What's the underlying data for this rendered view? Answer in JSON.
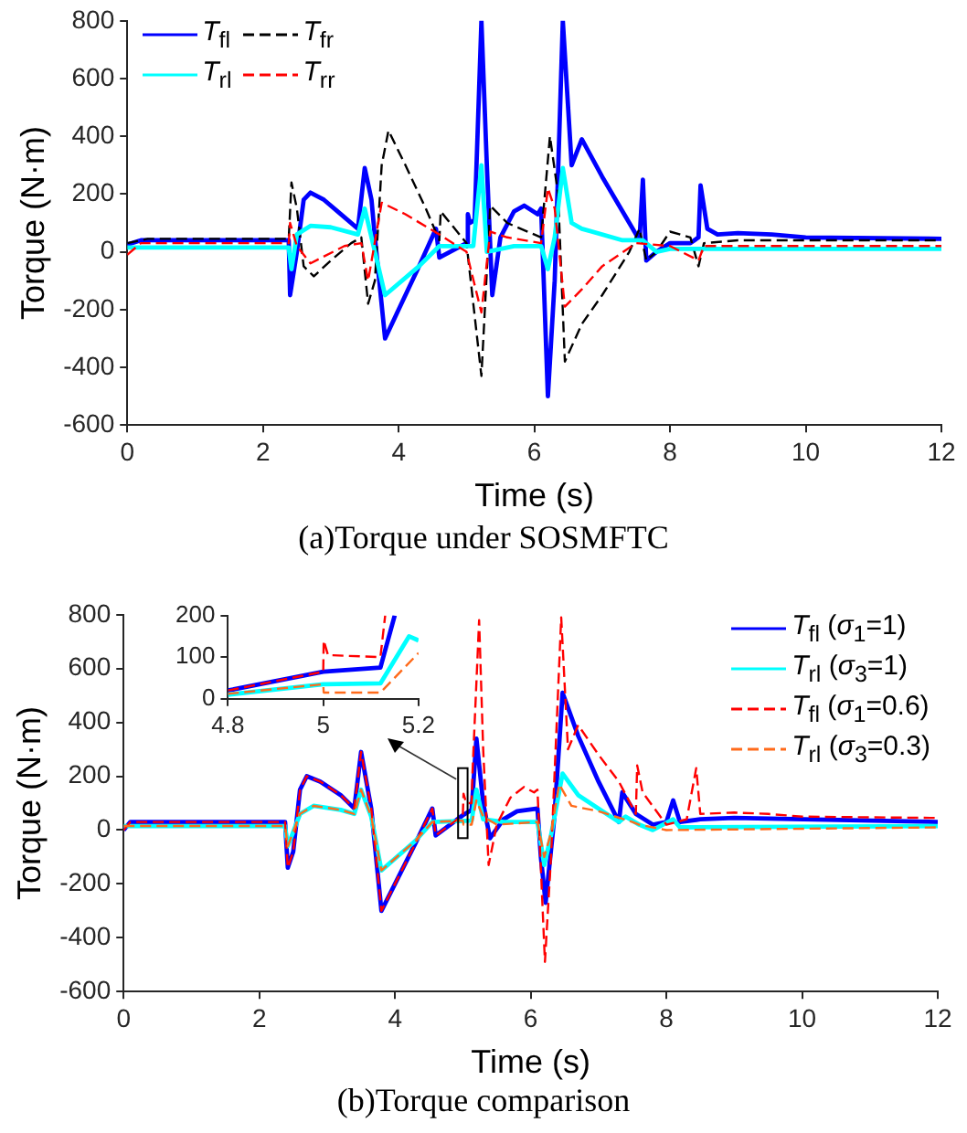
{
  "chart_data": [
    {
      "type": "line",
      "xlabel": "Time (s)",
      "ylabel": "Torque (N·m)",
      "annotations": [
        "(a)Torque under SOSMFTC"
      ],
      "xlim": [
        0,
        12
      ],
      "xticks": [
        0,
        2,
        4,
        6,
        8,
        10,
        12
      ],
      "ylim": [
        -600,
        800
      ],
      "yticks": [
        -600,
        -400,
        -200,
        0,
        200,
        400,
        600,
        800
      ],
      "grid": false,
      "legend": "top left",
      "marker": "none",
      "series": [
        {
          "name": "T$_{fl}$",
          "color": "#0000ff",
          "line_style": "solid",
          "x": [
            0,
            0.2,
            2.38,
            2.4,
            2.5,
            2.6,
            2.7,
            2.9,
            3.1,
            3.4,
            3.5,
            3.6,
            3.65,
            3.8,
            4.0,
            4.3,
            4.55,
            4.6,
            5.0,
            5.02,
            5.05,
            5.12,
            5.22,
            5.3,
            5.38,
            5.5,
            5.7,
            5.85,
            6.05,
            6.1,
            6.2,
            6.3,
            6.42,
            6.55,
            6.7,
            7.0,
            7.4,
            7.55,
            7.6,
            7.65,
            7.8,
            8.0,
            8.3,
            8.42,
            8.45,
            8.55,
            8.7,
            9.0,
            9.5,
            10,
            12
          ],
          "values": [
            25,
            40,
            40,
            -150,
            0,
            180,
            205,
            180,
            140,
            80,
            290,
            180,
            50,
            -300,
            -200,
            -50,
            80,
            -20,
            30,
            130,
            100,
            110,
            800,
            300,
            -150,
            50,
            140,
            160,
            130,
            150,
            -500,
            -100,
            800,
            300,
            390,
            260,
            100,
            40,
            250,
            -30,
            0,
            30,
            30,
            50,
            230,
            80,
            60,
            65,
            60,
            50,
            45
          ]
        },
        {
          "name": "T$_{fr}$",
          "color": "#000000",
          "line_style": "dashed",
          "x": [
            0,
            0.3,
            2.38,
            2.42,
            2.5,
            2.6,
            2.75,
            3.0,
            3.3,
            3.45,
            3.55,
            3.65,
            3.75,
            3.85,
            4.1,
            4.4,
            4.6,
            4.62,
            5.0,
            5.22,
            5.35,
            5.6,
            6.0,
            6.1,
            6.23,
            6.35,
            6.45,
            6.7,
            7.0,
            7.4,
            7.55,
            7.65,
            7.8,
            8.0,
            8.3,
            8.42,
            8.5,
            9.0,
            12
          ],
          "values": [
            30,
            45,
            45,
            240,
            150,
            -50,
            -85,
            -30,
            30,
            50,
            -180,
            -100,
            300,
            420,
            300,
            150,
            40,
            140,
            30,
            -430,
            160,
            100,
            60,
            50,
            400,
            200,
            -380,
            -250,
            -150,
            0,
            80,
            -30,
            0,
            70,
            50,
            -50,
            30,
            40,
            40
          ]
        },
        {
          "name": "T$_{rl}$",
          "color": "#00ffff",
          "line_style": "solid",
          "x": [
            0,
            2.38,
            2.42,
            2.5,
            2.7,
            3.0,
            3.4,
            3.5,
            3.6,
            3.8,
            4.3,
            4.6,
            5.1,
            5.22,
            5.3,
            5.7,
            6.1,
            6.2,
            6.3,
            6.42,
            6.55,
            6.7,
            7.3,
            7.6,
            7.8,
            8.0,
            12
          ],
          "values": [
            15,
            15,
            -60,
            60,
            90,
            85,
            60,
            150,
            50,
            -150,
            -50,
            20,
            20,
            300,
            0,
            20,
            20,
            -60,
            50,
            290,
            100,
            80,
            40,
            40,
            0,
            10,
            10
          ]
        },
        {
          "name": "T$_{rr}$",
          "color": "#ff0000",
          "line_style": "dashed",
          "x": [
            0,
            0.2,
            2.38,
            2.4,
            2.5,
            2.7,
            3.2,
            3.45,
            3.55,
            3.75,
            4.1,
            4.6,
            5.0,
            5.22,
            5.35,
            5.6,
            6.1,
            6.2,
            6.3,
            6.45,
            6.7,
            7.0,
            7.5,
            8.0,
            8.42,
            8.5,
            12
          ],
          "values": [
            -10,
            30,
            30,
            100,
            20,
            -40,
            20,
            30,
            -100,
            170,
            130,
            60,
            0,
            -210,
            70,
            50,
            30,
            220,
            150,
            -190,
            -130,
            -50,
            30,
            20,
            -30,
            20,
            20
          ]
        }
      ]
    },
    {
      "type": "line",
      "xlabel": "Time (s)",
      "ylabel": "Torque (N·m)",
      "annotations": [
        "(b)Torque comparison"
      ],
      "xlim": [
        0,
        12
      ],
      "xticks": [
        0,
        2,
        4,
        6,
        8,
        10,
        12
      ],
      "ylim": [
        -600,
        800
      ],
      "yticks": [
        -600,
        -400,
        -200,
        0,
        200,
        400,
        600,
        800
      ],
      "grid": false,
      "legend": "top right",
      "marker": "none",
      "series": [
        {
          "name": "T$_{fl}$ (σ$_{1}$=1)",
          "color": "#0000ff",
          "line_style": "solid",
          "x": [
            0,
            0.1,
            2.38,
            2.42,
            2.5,
            2.6,
            2.7,
            2.9,
            3.2,
            3.4,
            3.5,
            3.65,
            3.8,
            4.0,
            4.3,
            4.55,
            4.6,
            5.0,
            5.13,
            5.2,
            5.3,
            5.4,
            5.6,
            5.8,
            6.1,
            6.15,
            6.22,
            6.35,
            6.47,
            6.7,
            7.0,
            7.3,
            7.35,
            7.55,
            7.8,
            8.0,
            8.1,
            8.2,
            8.5,
            9.0,
            12
          ],
          "values": [
            0,
            30,
            30,
            -140,
            -80,
            150,
            200,
            180,
            130,
            80,
            290,
            80,
            -300,
            -200,
            -50,
            80,
            -20,
            55,
            75,
            340,
            100,
            -30,
            40,
            70,
            80,
            -100,
            -270,
            50,
            510,
            350,
            180,
            30,
            140,
            60,
            20,
            30,
            110,
            30,
            40,
            45,
            30
          ]
        },
        {
          "name": "T$_{rl}$ (σ$_{3}$=1)",
          "color": "#00ffff",
          "line_style": "solid",
          "x": [
            0,
            2.38,
            2.42,
            2.6,
            2.8,
            3.2,
            3.4,
            3.5,
            3.65,
            3.8,
            4.3,
            4.55,
            5.13,
            5.2,
            5.3,
            5.6,
            6.1,
            6.2,
            6.3,
            6.47,
            6.7,
            7.0,
            7.3,
            7.4,
            7.6,
            7.8,
            8.1,
            8.2,
            12
          ],
          "values": [
            15,
            15,
            -60,
            60,
            90,
            75,
            60,
            150,
            50,
            -150,
            -40,
            30,
            35,
            150,
            40,
            30,
            30,
            -130,
            -20,
            210,
            130,
            80,
            30,
            50,
            20,
            0,
            40,
            10,
            15
          ]
        },
        {
          "name": "T$_{fl}$ (σ$_{1}$=0.6)",
          "color": "#ff0000",
          "line_style": "dashed",
          "x": [
            0,
            0.1,
            2.38,
            2.42,
            2.5,
            2.6,
            2.7,
            2.9,
            3.2,
            3.4,
            3.5,
            3.65,
            3.8,
            4.0,
            4.3,
            4.55,
            4.6,
            5.0,
            5.01,
            5.05,
            5.13,
            5.14,
            5.24,
            5.3,
            5.38,
            5.5,
            5.7,
            5.9,
            6.05,
            6.1,
            6.21,
            6.3,
            6.45,
            6.55,
            6.7,
            7.0,
            7.3,
            7.55,
            7.57,
            7.65,
            8.0,
            8.3,
            8.44,
            8.5,
            9.0,
            9.5,
            10,
            12
          ],
          "values": [
            0,
            30,
            30,
            -140,
            -80,
            150,
            200,
            180,
            130,
            80,
            290,
            80,
            -300,
            -200,
            -50,
            80,
            -20,
            55,
            135,
            100,
            100,
            200,
            780,
            300,
            -130,
            20,
            120,
            160,
            140,
            150,
            -490,
            -100,
            790,
            300,
            390,
            280,
            180,
            60,
            240,
            140,
            20,
            40,
            230,
            60,
            65,
            60,
            50,
            45
          ]
        },
        {
          "name": "T$_{rl}$ (σ$_{3}$=0.3)",
          "color": "#ff6a1a",
          "line_style": "dashed",
          "x": [
            0,
            2.38,
            2.42,
            2.6,
            2.8,
            3.2,
            3.4,
            3.5,
            3.65,
            3.8,
            4.3,
            4.55,
            5.0,
            5.01,
            5.13,
            5.2,
            5.3,
            5.5,
            6.1,
            6.2,
            6.3,
            6.42,
            6.6,
            7.0,
            7.5,
            7.6,
            8.0,
            12
          ],
          "values": [
            15,
            15,
            -60,
            60,
            90,
            75,
            60,
            150,
            50,
            -150,
            -40,
            30,
            35,
            20,
            20,
            110,
            50,
            20,
            30,
            -100,
            -10,
            170,
            90,
            70,
            30,
            20,
            0,
            10
          ]
        }
      ]
    },
    {
      "type": "line",
      "xlim": [
        4.8,
        5.2
      ],
      "xticks": [
        4.8,
        5,
        5.2
      ],
      "ylim": [
        0,
        200
      ],
      "yticks": [
        0,
        100,
        200
      ],
      "grid": false,
      "marker": "none",
      "series": [
        {
          "color": "#0000ff",
          "line_style": "solid",
          "x": [
            4.8,
            5.0,
            5.12,
            5.15
          ],
          "values": [
            20,
            65,
            75,
            200
          ]
        },
        {
          "color": "#00ffff",
          "line_style": "solid",
          "x": [
            4.8,
            5.0,
            5.12,
            5.18,
            5.2
          ],
          "values": [
            10,
            35,
            37,
            150,
            140
          ]
        },
        {
          "color": "#ff0000",
          "line_style": "dashed",
          "x": [
            4.8,
            5.0,
            5.001,
            5.01,
            5.12,
            5.13
          ],
          "values": [
            20,
            65,
            140,
            105,
            100,
            200
          ]
        },
        {
          "color": "#ff6a1a",
          "line_style": "dashed",
          "x": [
            4.8,
            5.0,
            5.001,
            5.12,
            5.2
          ],
          "values": [
            12,
            35,
            15,
            15,
            110
          ]
        }
      ]
    }
  ]
}
